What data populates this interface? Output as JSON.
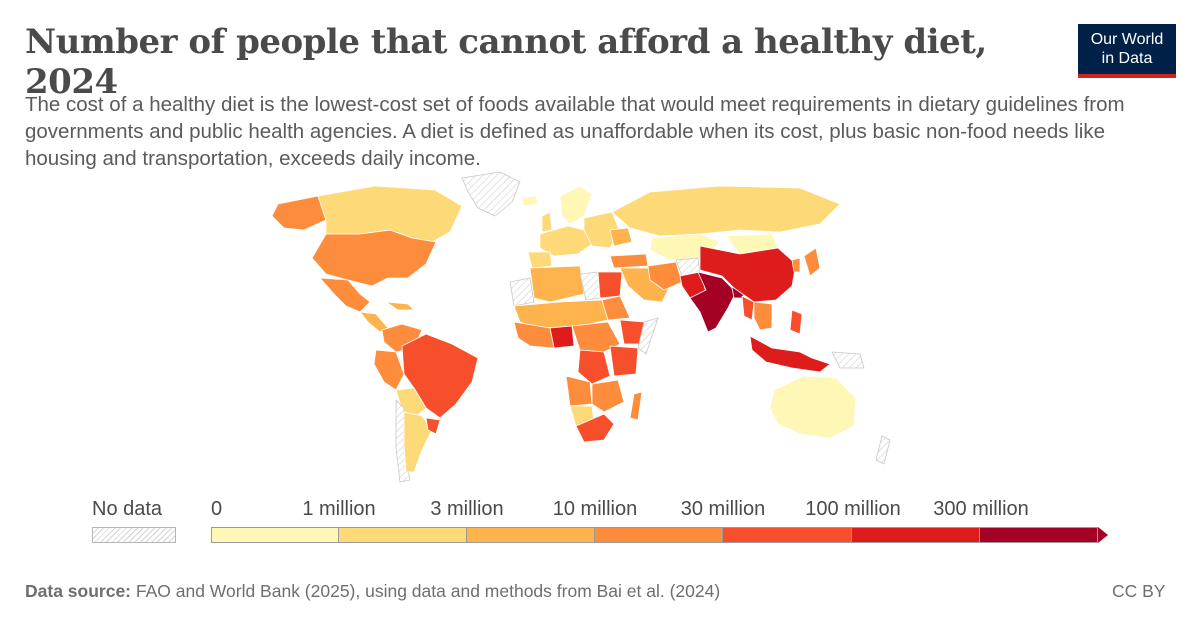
{
  "header": {
    "title": "Number of people that cannot afford a healthy diet, 2024",
    "subtitle": "The cost of a healthy diet is the lowest-cost set of foods available that would meet requirements in dietary guidelines from governments and public health agencies. A diet is defined as unaffordable when its cost, plus basic non-food needs like housing and transportation, exceeds daily income."
  },
  "logo": {
    "line1": "Our World",
    "line2": "in Data"
  },
  "legend": {
    "no_data_label": "No data",
    "ticks": [
      "0",
      "1 million",
      "3 million",
      "10 million",
      "30 million",
      "100 million",
      "300 million"
    ],
    "colors": [
      "#fff7b6",
      "#fed977",
      "#feb34c",
      "#fd8d3c",
      "#f74f2b",
      "#df1c1c",
      "#a50026"
    ]
  },
  "chart_data": {
    "type": "choropleth",
    "metric": "Number of people that cannot afford a healthy diet",
    "year": 2024,
    "bins": [
      "0",
      "1 million",
      "3 million",
      "10 million",
      "30 million",
      "100 million",
      "300 million"
    ],
    "regions": [
      {
        "name": "India",
        "bin": "300 million"
      },
      {
        "name": "China",
        "bin": "100 million"
      },
      {
        "name": "Indonesia",
        "bin": "100 million"
      },
      {
        "name": "Pakistan",
        "bin": "100 million"
      },
      {
        "name": "Bangladesh",
        "bin": "100 million"
      },
      {
        "name": "Nigeria",
        "bin": "100 million"
      },
      {
        "name": "Philippines",
        "bin": "30 million"
      },
      {
        "name": "Brazil",
        "bin": "30 million"
      },
      {
        "name": "DR Congo",
        "bin": "30 million"
      },
      {
        "name": "Ethiopia",
        "bin": "30 million"
      },
      {
        "name": "Egypt",
        "bin": "30 million"
      },
      {
        "name": "South Africa",
        "bin": "30 million"
      },
      {
        "name": "Myanmar",
        "bin": "30 million"
      },
      {
        "name": "Vietnam",
        "bin": "30 million"
      },
      {
        "name": "United States",
        "bin": "10 million"
      },
      {
        "name": "Mexico",
        "bin": "10 million"
      },
      {
        "name": "Colombia",
        "bin": "10 million"
      },
      {
        "name": "Iran",
        "bin": "10 million"
      },
      {
        "name": "Japan",
        "bin": "10 million"
      },
      {
        "name": "Canada",
        "bin": "1 million"
      },
      {
        "name": "Russia",
        "bin": "1 million"
      },
      {
        "name": "Argentina",
        "bin": "1 million"
      },
      {
        "name": "Kazakhstan",
        "bin": "0"
      },
      {
        "name": "Australia",
        "bin": "0"
      }
    ]
  },
  "footer": {
    "source_label": "Data source:",
    "source_text": " FAO and World Bank (2025), using data and methods from Bai et al. (2024)",
    "license": "CC BY"
  }
}
